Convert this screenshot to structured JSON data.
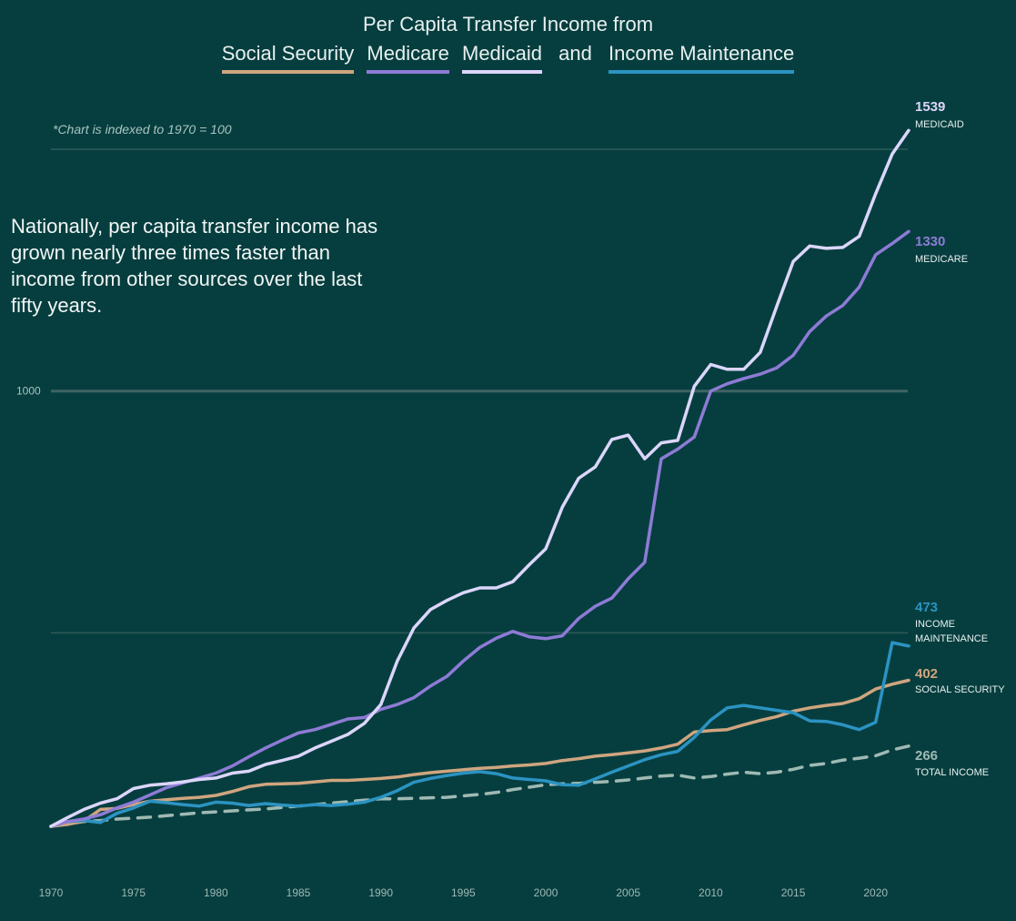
{
  "title": {
    "line1": "Per Capita Transfer Income from",
    "legend": [
      {
        "label": "Social Security",
        "color": "#cfa57f"
      },
      {
        "label": "Medicare",
        "color": "#8e7bd6"
      },
      {
        "label": "Medicaid",
        "color": "#dcd6fb"
      }
    ],
    "connector": "and",
    "legend_last": {
      "label": "Income Maintenance",
      "color": "#2b93c2"
    }
  },
  "note": "*Chart is indexed to 1970 = 100",
  "annotation": "Nationally, per capita transfer income has grown nearly three times faster than income from other sources over the last fifty years.",
  "chart_data": {
    "type": "line",
    "xlim": [
      1970,
      2022
    ],
    "ylim": [
      0,
      1700
    ],
    "x_ticks": [
      1970,
      1975,
      1980,
      1985,
      1990,
      1995,
      2000,
      2005,
      2010,
      2015,
      2020
    ],
    "y_gridlines": [
      500,
      1000,
      1500
    ],
    "y_tick_labels": [
      {
        "value": 1000,
        "label": "1000"
      }
    ],
    "x": [
      1970,
      1971,
      1972,
      1973,
      1974,
      1975,
      1976,
      1977,
      1978,
      1979,
      1980,
      1981,
      1982,
      1983,
      1984,
      1985,
      1986,
      1987,
      1988,
      1989,
      1990,
      1991,
      1992,
      1993,
      1994,
      1995,
      1996,
      1997,
      1998,
      1999,
      2000,
      2001,
      2002,
      2003,
      2004,
      2005,
      2006,
      2007,
      2008,
      2009,
      2010,
      2011,
      2012,
      2013,
      2014,
      2015,
      2016,
      2017,
      2018,
      2019,
      2020,
      2021,
      2022
    ],
    "series": [
      {
        "name": "Medicaid",
        "color": "#dcd6fb",
        "width": 3.5,
        "end_value": "1539",
        "end_label": [
          "MEDICAID"
        ],
        "values": [
          100,
          118,
          135,
          148,
          157,
          178,
          185,
          188,
          192,
          197,
          200,
          210,
          214,
          228,
          236,
          245,
          262,
          276,
          290,
          313,
          352,
          442,
          510,
          548,
          567,
          583,
          593,
          593,
          606,
          641,
          674,
          760,
          820,
          843,
          900,
          909,
          860,
          893,
          898,
          1010,
          1055,
          1045,
          1045,
          1080,
          1175,
          1268,
          1300,
          1295,
          1297,
          1320,
          1408,
          1490,
          1539
        ]
      },
      {
        "name": "Medicare",
        "color": "#8e7bd6",
        "width": 3.5,
        "end_value": "1330",
        "end_label": [
          "MEDICARE"
        ],
        "values": [
          100,
          110,
          115,
          124,
          138,
          150,
          165,
          180,
          190,
          200,
          210,
          225,
          244,
          262,
          278,
          293,
          300,
          311,
          322,
          325,
          342,
          352,
          366,
          390,
          410,
          442,
          470,
          489,
          503,
          492,
          488,
          494,
          530,
          555,
          572,
          612,
          646,
          860,
          880,
          905,
          1000,
          1015,
          1026,
          1035,
          1048,
          1074,
          1123,
          1155,
          1177,
          1215,
          1282,
          1305,
          1330
        ]
      },
      {
        "name": "Social Security",
        "color": "#cfa57f",
        "width": 3.5,
        "end_value": "402",
        "end_label": [
          "SOCIAL SECURITY"
        ],
        "values": [
          100,
          104,
          111,
          135,
          137,
          145,
          152,
          155,
          158,
          160,
          164,
          172,
          182,
          187,
          188,
          189,
          192,
          195,
          195,
          197,
          199,
          202,
          207,
          211,
          214,
          217,
          220,
          222,
          225,
          227,
          230,
          236,
          240,
          245,
          248,
          252,
          256,
          262,
          270,
          295,
          298,
          300,
          310,
          319,
          327,
          338,
          345,
          350,
          354,
          364,
          384,
          394,
          402
        ]
      },
      {
        "name": "Income Maintenance",
        "color": "#2b93c2",
        "width": 3.5,
        "end_value": "473",
        "end_label": [
          "INCOME",
          "MAINTENANCE"
        ],
        "values": [
          100,
          110,
          112,
          108,
          127,
          138,
          152,
          149,
          145,
          142,
          150,
          148,
          143,
          147,
          144,
          142,
          145,
          143,
          146,
          150,
          160,
          174,
          191,
          199,
          205,
          210,
          213,
          209,
          200,
          197,
          194,
          186,
          185,
          198,
          212,
          225,
          238,
          248,
          255,
          284,
          320,
          345,
          350,
          345,
          340,
          335,
          318,
          317,
          310,
          300,
          315,
          480,
          473
        ]
      },
      {
        "name": "Total Income",
        "color": "#9fb9b3",
        "width": 3.5,
        "dash": "14 10",
        "end_value": "266",
        "end_label": [
          "TOTAL INCOME"
        ],
        "values": [
          100,
          105,
          110,
          112,
          115,
          117,
          119,
          122,
          125,
          128,
          130,
          132,
          134,
          136,
          139,
          142,
          145,
          148,
          151,
          154,
          157,
          157,
          158,
          159,
          160,
          163,
          166,
          170,
          176,
          181,
          186,
          188,
          189,
          191,
          193,
          196,
          200,
          204,
          206,
          200,
          203,
          208,
          212,
          209,
          212,
          218,
          226,
          230,
          237,
          241,
          246,
          258,
          266
        ]
      }
    ]
  }
}
